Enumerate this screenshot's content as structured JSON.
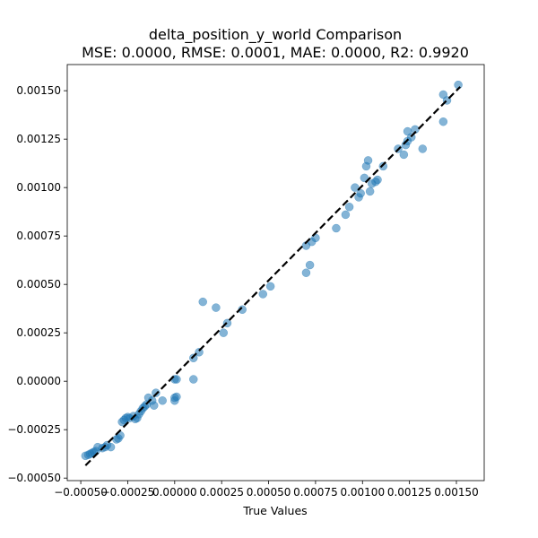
{
  "chart_data": {
    "type": "scatter",
    "title": "delta_position_y_world Comparison",
    "subtitle": "MSE: 0.0000, RMSE: 0.0001, MAE: 0.0000, R2: 0.9920",
    "xlabel": "True Values",
    "ylabel": "",
    "xlim": [
      -0.000572,
      0.001648
    ],
    "ylim": [
      -0.000513,
      0.001635
    ],
    "x_ticks": [
      -0.0005,
      -0.00025,
      0.0,
      0.00025,
      0.0005,
      0.00075,
      0.001,
      0.00125,
      0.0015
    ],
    "x_tick_labels": [
      "−0.00050",
      "−0.00025",
      "0.00000",
      "0.00025",
      "0.00050",
      "0.00075",
      "0.00100",
      "0.00125",
      "0.00150"
    ],
    "y_ticks": [
      -0.0005,
      -0.00025,
      0.0,
      0.00025,
      0.0005,
      0.00075,
      0.001,
      0.00125,
      0.0015
    ],
    "y_tick_labels": [
      "−0.00050",
      "−0.00025",
      "0.00000",
      "0.00025",
      "0.00050",
      "0.00075",
      "0.00100",
      "0.00125",
      "0.00150"
    ],
    "grid": false,
    "reference_line": {
      "x": [
        -0.000475,
        0.00152
      ],
      "y": [
        -0.000435,
        0.00152
      ],
      "style": "dashed",
      "color": "#000000"
    },
    "point_color": "#1f77b4",
    "points": [
      [
        -0.000475,
        -0.000385
      ],
      [
        -0.00046,
        -0.00038
      ],
      [
        -0.00045,
        -0.000375
      ],
      [
        -0.00044,
        -0.00037
      ],
      [
        -0.00043,
        -0.000365
      ],
      [
        -0.00042,
        -0.00036
      ],
      [
        -0.00041,
        -0.00034
      ],
      [
        -0.000385,
        -0.000345
      ],
      [
        -0.00037,
        -0.00034
      ],
      [
        -0.00036,
        -0.00033
      ],
      [
        -0.00034,
        -0.00034
      ],
      [
        -0.00031,
        -0.0003
      ],
      [
        -0.0003,
        -0.000295
      ],
      [
        -0.00029,
        -0.00028
      ],
      [
        -0.00028,
        -0.00021
      ],
      [
        -0.00027,
        -0.0002
      ],
      [
        -0.00026,
        -0.00019
      ],
      [
        -0.00025,
        -0.000185
      ],
      [
        -0.00024,
        -0.00019
      ],
      [
        -0.00022,
        -0.00018
      ],
      [
        -0.00021,
        -0.000195
      ],
      [
        -0.0002,
        -0.00019
      ],
      [
        -0.00019,
        -0.00017
      ],
      [
        -0.00018,
        -0.000155
      ],
      [
        -0.00017,
        -0.00014
      ],
      [
        -0.00016,
        -0.00013
      ],
      [
        -0.00015,
        -0.00012
      ],
      [
        -0.00014,
        -8.5e-05
      ],
      [
        -0.00012,
        -0.0001
      ],
      [
        -0.00011,
        -0.000125
      ],
      [
        -0.0001,
        -6e-05
      ],
      [
        -6.5e-05,
        -0.0001
      ],
      [
        0.0,
        1e-05
      ],
      [
        0.0,
        -0.0001
      ],
      [
        0.0,
        -8.5e-05
      ],
      [
        1e-05,
        -8e-05
      ],
      [
        1e-05,
        1e-05
      ],
      [
        0.0001,
        1e-05
      ],
      [
        0.0001,
        0.00012
      ],
      [
        0.00013,
        0.00015
      ],
      [
        0.00015,
        0.00041
      ],
      [
        0.00022,
        0.00038
      ],
      [
        0.00026,
        0.00025
      ],
      [
        0.00028,
        0.0003
      ],
      [
        0.00036,
        0.00037
      ],
      [
        0.00047,
        0.00045
      ],
      [
        0.00051,
        0.00049
      ],
      [
        0.0007,
        0.0007
      ],
      [
        0.0007,
        0.00056
      ],
      [
        0.00072,
        0.0006
      ],
      [
        0.00073,
        0.00072
      ],
      [
        0.00075,
        0.00074
      ],
      [
        0.00086,
        0.00079
      ],
      [
        0.00091,
        0.00086
      ],
      [
        0.00093,
        0.0009
      ],
      [
        0.00096,
        0.001
      ],
      [
        0.00098,
        0.00095
      ],
      [
        0.00099,
        0.00097
      ],
      [
        0.00101,
        0.00105
      ],
      [
        0.00102,
        0.00111
      ],
      [
        0.00103,
        0.00114
      ],
      [
        0.00104,
        0.00098
      ],
      [
        0.00105,
        0.00102
      ],
      [
        0.00107,
        0.00103
      ],
      [
        0.00108,
        0.00104
      ],
      [
        0.00111,
        0.00111
      ],
      [
        0.00119,
        0.0012
      ],
      [
        0.00122,
        0.00117
      ],
      [
        0.00123,
        0.00122
      ],
      [
        0.00124,
        0.00124
      ],
      [
        0.00124,
        0.00129
      ],
      [
        0.00126,
        0.00126
      ],
      [
        0.00128,
        0.0013
      ],
      [
        0.00132,
        0.0012
      ],
      [
        0.00143,
        0.00148
      ],
      [
        0.00143,
        0.00134
      ],
      [
        0.00145,
        0.00145
      ],
      [
        0.00151,
        0.00153
      ]
    ]
  }
}
